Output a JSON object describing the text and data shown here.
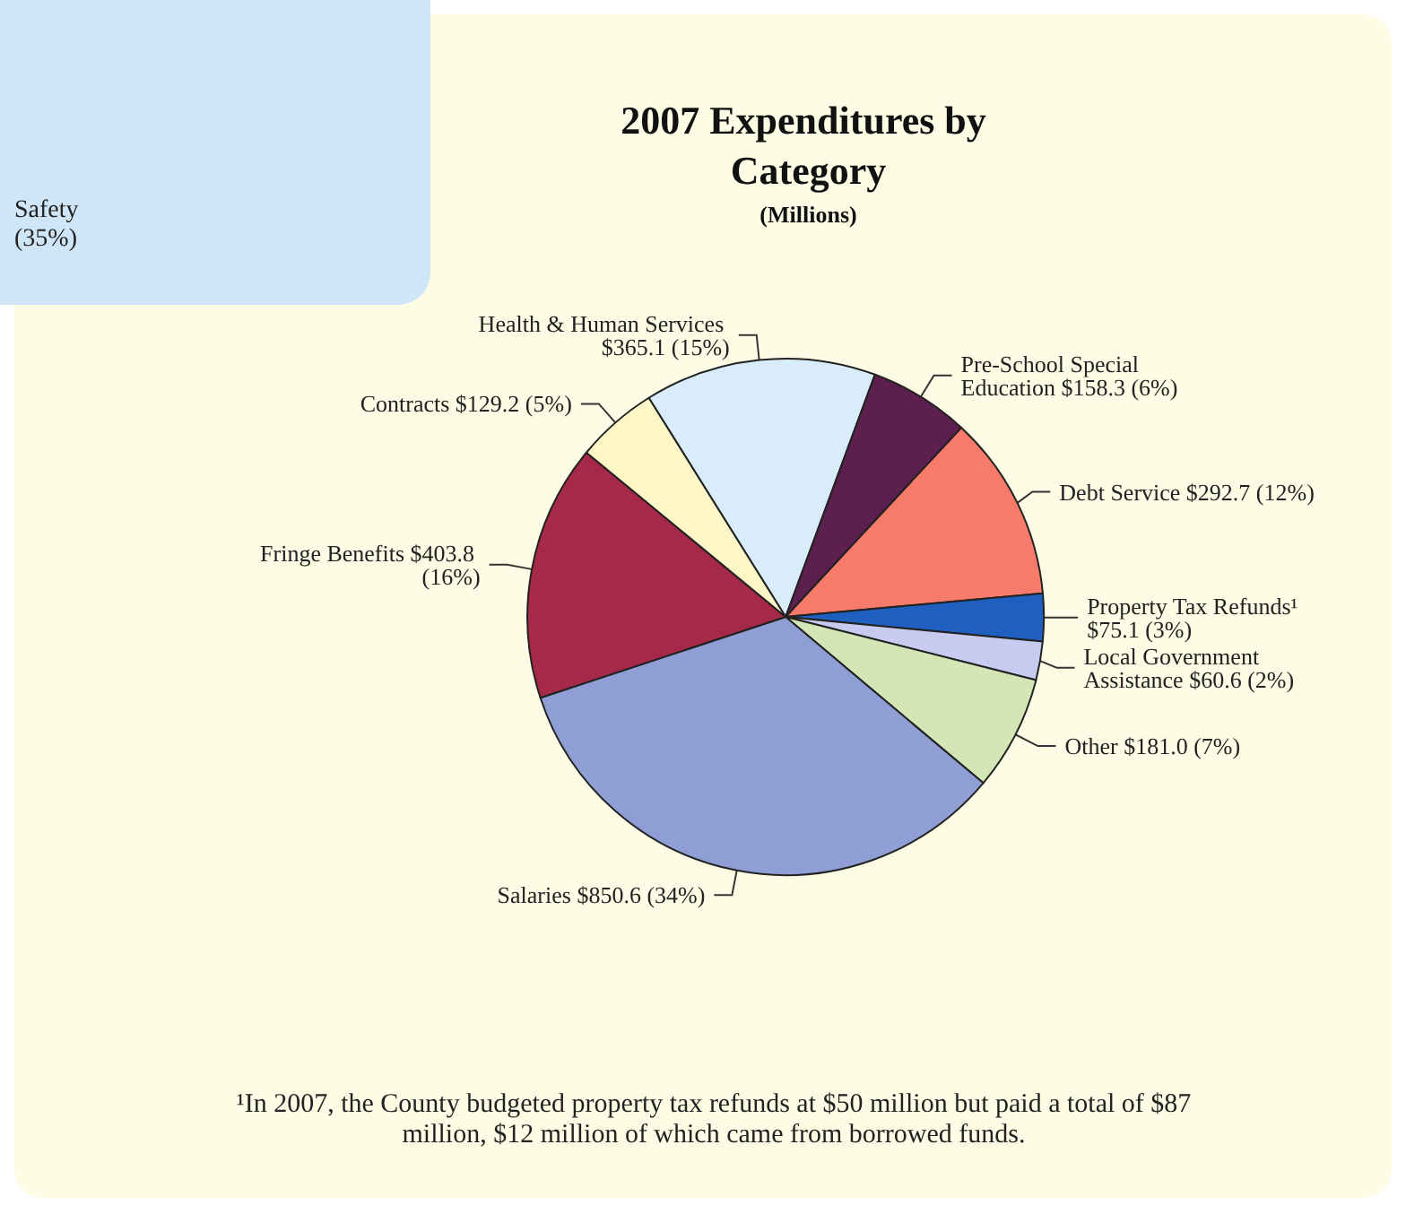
{
  "chart_data": {
    "type": "pie",
    "title": "2007 Expenditures by Category",
    "subtitle": "(Millions)",
    "categories": [
      "Health & Human Services",
      "Pre-School Special Education",
      "Debt Service",
      "Property Tax Refunds¹",
      "Local Government Assistance",
      "Other",
      "Salaries",
      "Fringe Benefits",
      "Contracts"
    ],
    "values": [
      365.1,
      158.3,
      292.7,
      75.1,
      60.6,
      181.0,
      850.6,
      403.8,
      129.2
    ],
    "value_labels": [
      "$365.1 (15%)",
      "$158.3 (6%)",
      "$292.7 (12%)",
      "$75.1 (3%)",
      "$60.6 (2%)",
      "$181.0 (7%)",
      "$850.6 (34%)",
      "$403.8 (16%)",
      "$129.2 (5%)"
    ],
    "colors": [
      "#d9ecfa",
      "#5c1f4e",
      "#f77b6a",
      "#1f5fc0",
      "#c6cbef",
      "#d4e6b5",
      "#8f9fd6",
      "#a6294a",
      "#fdf6c6"
    ],
    "legend": false,
    "annotations": [
      "Safety (35%)",
      "¹In 2007, the County budgeted property tax refunds at $50 million but paid a total of $87 million, $12 million of which came from borrowed funds."
    ]
  }
}
